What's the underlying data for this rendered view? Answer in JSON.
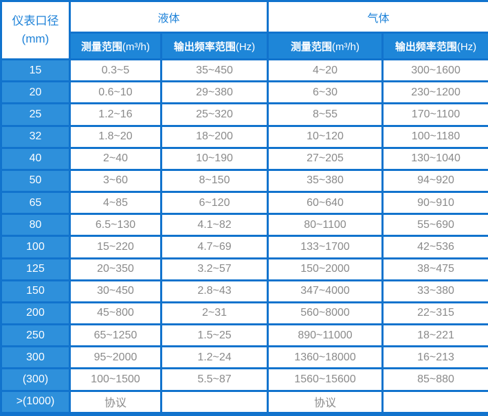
{
  "table": {
    "corner": {
      "line1": "仪表口径",
      "line2": "(mm)"
    },
    "groups": [
      {
        "label": "液体"
      },
      {
        "label": "气体"
      }
    ],
    "subheaders": [
      {
        "label": "测量范围",
        "unit": "(m³/h)"
      },
      {
        "label": "输出频率范围",
        "unit": "(Hz)"
      },
      {
        "label": "测量范围",
        "unit": "(m³/h)"
      },
      {
        "label": "输出频率范围",
        "unit": "(Hz)"
      }
    ],
    "rows": [
      {
        "size": "15",
        "liquid_range": "0.3~5",
        "liquid_freq": "35~450",
        "gas_range": "4~20",
        "gas_freq": "300~1600"
      },
      {
        "size": "20",
        "liquid_range": "0.6~10",
        "liquid_freq": "29~380",
        "gas_range": "6~30",
        "gas_freq": "230~1200"
      },
      {
        "size": "25",
        "liquid_range": "1.2~16",
        "liquid_freq": "25~320",
        "gas_range": "8~55",
        "gas_freq": "170~1100"
      },
      {
        "size": "32",
        "liquid_range": "1.8~20",
        "liquid_freq": "18~200",
        "gas_range": "10~120",
        "gas_freq": "100~1180"
      },
      {
        "size": "40",
        "liquid_range": "2~40",
        "liquid_freq": "10~190",
        "gas_range": "27~205",
        "gas_freq": "130~1040"
      },
      {
        "size": "50",
        "liquid_range": "3~60",
        "liquid_freq": "8~150",
        "gas_range": "35~380",
        "gas_freq": "94~920"
      },
      {
        "size": "65",
        "liquid_range": "4~85",
        "liquid_freq": "6~120",
        "gas_range": "60~640",
        "gas_freq": "90~910"
      },
      {
        "size": "80",
        "liquid_range": "6.5~130",
        "liquid_freq": "4.1~82",
        "gas_range": "80~1100",
        "gas_freq": "55~690"
      },
      {
        "size": "100",
        "liquid_range": "15~220",
        "liquid_freq": "4.7~69",
        "gas_range": "133~1700",
        "gas_freq": "42~536"
      },
      {
        "size": "125",
        "liquid_range": "20~350",
        "liquid_freq": "3.2~57",
        "gas_range": "150~2000",
        "gas_freq": "38~475"
      },
      {
        "size": "150",
        "liquid_range": "30~450",
        "liquid_freq": "2.8~43",
        "gas_range": "347~4000",
        "gas_freq": "33~380"
      },
      {
        "size": "200",
        "liquid_range": "45~800",
        "liquid_freq": "2~31",
        "gas_range": "560~8000",
        "gas_freq": "22~315"
      },
      {
        "size": "250",
        "liquid_range": "65~1250",
        "liquid_freq": "1.5~25",
        "gas_range": "890~11000",
        "gas_freq": "18~221"
      },
      {
        "size": "300",
        "liquid_range": "95~2000",
        "liquid_freq": "1.2~24",
        "gas_range": "1360~18000",
        "gas_freq": "16~213"
      },
      {
        "size": "(300)",
        "liquid_range": "100~1500",
        "liquid_freq": "5.5~87",
        "gas_range": "1560~15600",
        "gas_freq": "85~880"
      },
      {
        "size": ">(1000)",
        "liquid_range": "协议",
        "liquid_freq": "",
        "gas_range": "协议",
        "gas_freq": ""
      }
    ]
  },
  "colors": {
    "grid_blue": "#1173cd",
    "subheader_bg": "#1e86d8",
    "rowheader_bg": "#2e90db",
    "header_text_blue": "#1e82d8",
    "data_text_gray": "#8a8a8a"
  }
}
